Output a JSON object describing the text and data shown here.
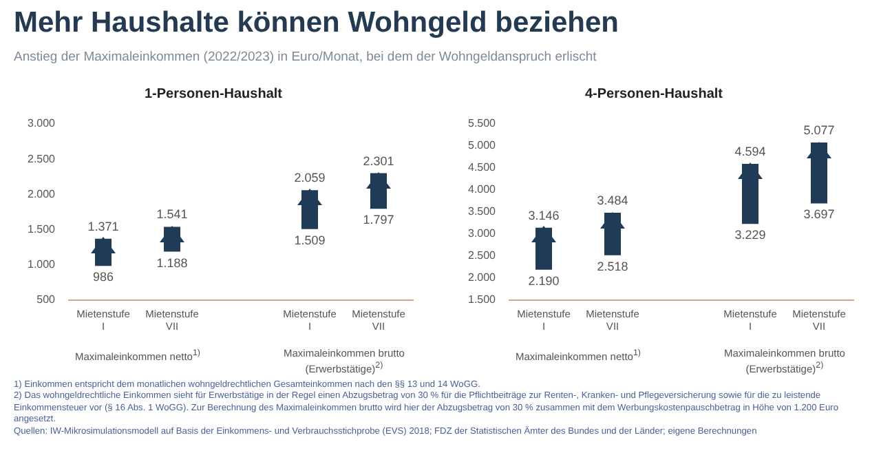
{
  "chart_data": [
    {
      "type": "bar",
      "title": "1-Personen-Haushalt",
      "categories": [
        "Mietenstufe I",
        "Mietenstufe VII",
        null,
        "Mietenstufe I",
        "Mietenstufe VII"
      ],
      "series": [
        {
          "type": "bar",
          "color": "#1f3b58",
          "base": [
            986,
            1188,
            null,
            1509,
            1797
          ],
          "values": [
            385,
            353,
            null,
            550,
            504
          ],
          "value_labels": [
            "1.371",
            "1.541",
            null,
            "2.059",
            "2.301"
          ]
        }
      ],
      "ylim": [
        500,
        3000
      ],
      "yticks": [
        {
          "value": 500,
          "label": "500"
        },
        {
          "value": 1000,
          "label": "1.000"
        },
        {
          "value": 1500,
          "label": "1.500"
        },
        {
          "value": 2000,
          "label": "2.000"
        },
        {
          "value": 2500,
          "label": "2.500"
        },
        {
          "value": 3000,
          "label": "3.000"
        }
      ],
      "grid": false,
      "legend": false,
      "annotations": [
        "Mehr Haushalte können Wohngeld beziehen",
        "Anstieg der Maximaleinkommen (2022/2023) in Euro/Monat, bei dem der Wohngeldanspruch erlischt",
        "Maximaleinkommen netto$^{1)}$",
        "Maximaleinkommen brutto (Erwerbstätige)$^{2)}$",
        "1) Einkommen entspricht dem monatlichen wohngeldrechtlichen Gesamteinkommen nach den §§ 13 und 14 WoGG.",
        "2) Das wohngeldrechtliche Einkommen sieht für Erwerbstätige in der Regel einen Abzugsbetrag von 30 % für die Pflichtbeiträge zur Renten-, Kranken- und Pflegeversicherung sowie für die zu leistende Einkommensteuer vor (§ 16 Abs. 1 WoGG). Zur Berechnung des Maximaleinkommen brutto  wird hier der Abzugsbetrag von 30 % zusammen mit dem Werbungskostenpauschbetrag in Höhe von 1.200 Euro angesetzt.",
        "Quellen: IW-Mikrosimulationsmodell auf Basis der Einkommens- und Verbrauchsstichprobe (EVS) 2018; FDZ der Statistischen Ämter des Bundes und der Länder; eigene Berechnungen",
        "986",
        "1.188",
        "1.509",
        "1.797"
      ]
    },
    {
      "type": "bar",
      "title": "4-Personen-Haushalt",
      "categories": [
        "Mietenstufe I",
        "Mietenstufe VII",
        null,
        "Mietenstufe I",
        "Mietenstufe VII"
      ],
      "series": [
        {
          "type": "bar",
          "color": "#1f3b58",
          "base": [
            2190,
            2518,
            null,
            3229,
            3697
          ],
          "values": [
            956,
            966,
            null,
            1365,
            1380
          ],
          "value_labels": [
            "3.146",
            "3.484",
            null,
            "4.594",
            "5.077"
          ]
        }
      ],
      "ylim": [
        1500,
        5500
      ],
      "yticks": [
        {
          "value": 1500,
          "label": "1.500"
        },
        {
          "value": 2000,
          "label": "2.000"
        },
        {
          "value": 2500,
          "label": "2.500"
        },
        {
          "value": 3000,
          "label": "3.000"
        },
        {
          "value": 3500,
          "label": "3.500"
        },
        {
          "value": 4000,
          "label": "4.000"
        },
        {
          "value": 4500,
          "label": "4.500"
        },
        {
          "value": 5000,
          "label": "5.000"
        },
        {
          "value": 5500,
          "label": "5.500"
        }
      ],
      "grid": false,
      "legend": false,
      "annotations": [
        "Maximaleinkommen netto$^{1)}$",
        "Maximaleinkommen brutto (Erwerbstätige)$^{2)}$",
        "2.190",
        "2.518",
        "3.229",
        "3.697"
      ]
    }
  ]
}
